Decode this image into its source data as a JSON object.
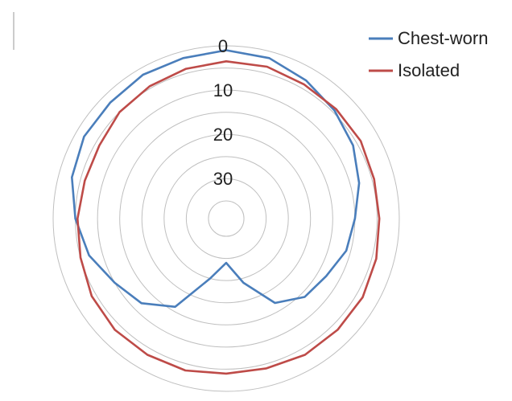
{
  "chart_data": {
    "type": "polar",
    "theta": [
      0,
      15,
      30,
      45,
      60,
      75,
      90,
      105,
      120,
      135,
      150,
      165,
      180,
      195,
      210,
      225,
      240,
      255,
      270,
      285,
      300,
      315,
      330,
      345
    ],
    "series": [
      {
        "name": "Chest-worn",
        "color": "#4a7ebb",
        "values": [
          1,
          1.5,
          3,
          4.5,
          6,
          8,
          10,
          11,
          13,
          14,
          17,
          24,
          29,
          25,
          16,
          12,
          10,
          7,
          5,
          3,
          2,
          2,
          1.5,
          1.5
        ]
      },
      {
        "name": "Isolated",
        "color": "#be4b48",
        "values": [
          3.5,
          3.5,
          4,
          4,
          4,
          4.5,
          4.5,
          4,
          3.5,
          3.5,
          3.5,
          4,
          4,
          3.5,
          3.5,
          3.5,
          4,
          5,
          5.5,
          6,
          6,
          5,
          4.5,
          4
        ]
      }
    ],
    "rlim": [
      0,
      39
    ],
    "rticks": [
      0,
      10,
      20,
      30
    ],
    "minor_rticks": [
      5,
      15,
      25,
      35
    ],
    "reversed": true,
    "grid": true
  }
}
